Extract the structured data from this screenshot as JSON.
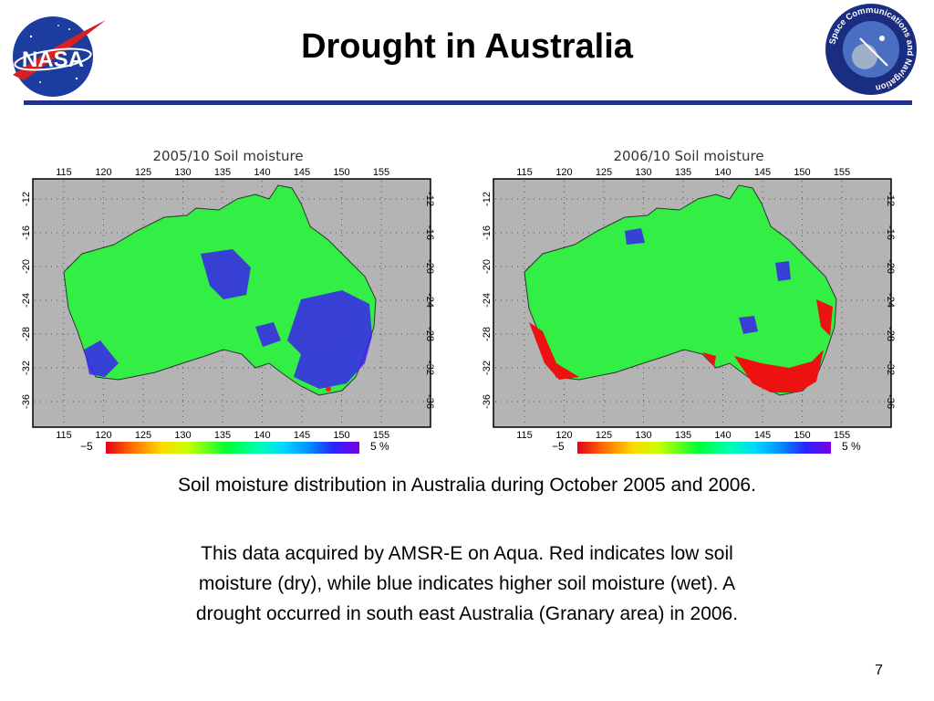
{
  "slide": {
    "title": "Drought in Australia",
    "page_number": "7"
  },
  "logos": {
    "left": {
      "name": "nasa-logo",
      "text": "NASA"
    },
    "right": {
      "name": "space-communications-and-navigation-logo",
      "text": "Space Communications and Navigation"
    }
  },
  "maps": [
    {
      "title": "2005/10 Soil moisture",
      "lon_ticks": [
        "115",
        "120",
        "125",
        "130",
        "135",
        "140",
        "145",
        "150",
        "155"
      ],
      "lat_ticks": [
        "-12",
        "-16",
        "-20",
        "-24",
        "-28",
        "-32",
        "-36"
      ],
      "colorbar_min": "−5",
      "colorbar_max": "5 %"
    },
    {
      "title": "2006/10 Soil moisture",
      "lon_ticks": [
        "115",
        "120",
        "125",
        "130",
        "135",
        "140",
        "145",
        "150",
        "155"
      ],
      "lat_ticks": [
        "-12",
        "-16",
        "-20",
        "-24",
        "-28",
        "-32",
        "-36"
      ],
      "colorbar_min": "−5",
      "colorbar_max": "5 %"
    }
  ],
  "captions": {
    "line1": "Soil moisture distribution in Australia during October 2005 and 2006.",
    "para": [
      "This data acquired by AMSR-E on Aqua. Red indicates low soil",
      "moisture (dry), while blue indicates higher soil moisture (wet). A",
      "drought occurred in south east Australia (Granary area) in 2006."
    ]
  },
  "colors": {
    "rule": "#1f2f8a",
    "ocean": "#b4b4b4",
    "land_base": "#33ee44",
    "wet": "#3322ee",
    "dry": "#ee1111"
  }
}
